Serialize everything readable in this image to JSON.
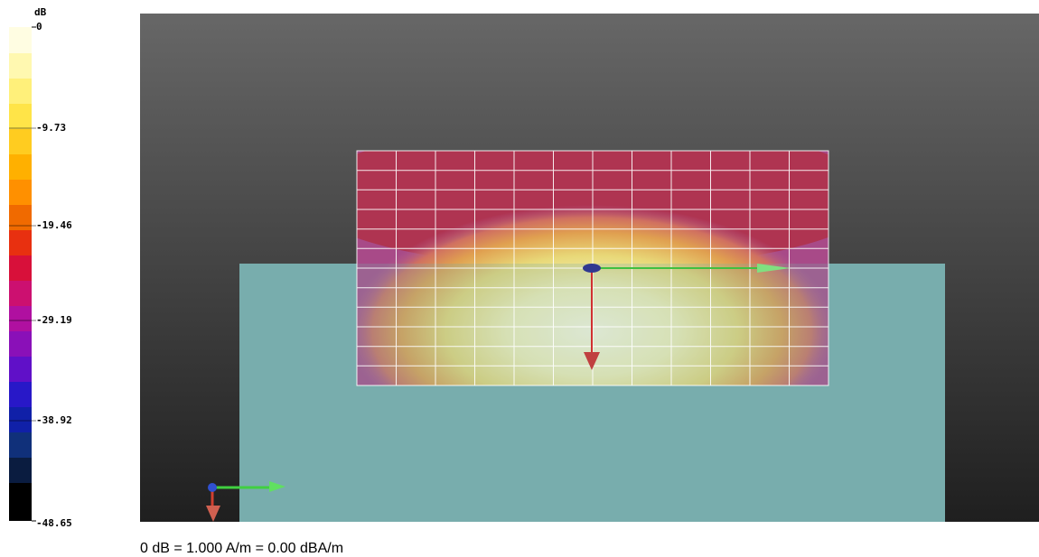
{
  "colorbar": {
    "unit": "dB",
    "labels": [
      "0",
      "-9.73",
      "-19.46",
      "-29.19",
      "-38.92",
      "-48.65"
    ]
  },
  "footer": "0 dB = 1.000 A/m = 0.00 dBA/m"
}
